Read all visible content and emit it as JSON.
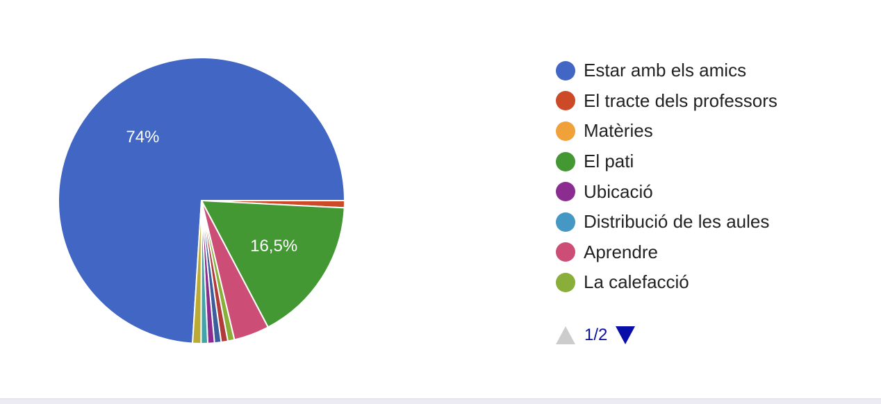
{
  "chart_data": {
    "type": "pie",
    "slices": [
      {
        "label": "Estar amb els amics",
        "value": 74,
        "display": "74%",
        "color": "#4166c4"
      },
      {
        "label": "El tracte dels professors",
        "value": 0.8,
        "display": "",
        "color": "#cc4a28"
      },
      {
        "label": "El pati",
        "value": 16.5,
        "display": "16,5%",
        "color": "#449834"
      },
      {
        "label": "Aprendre",
        "value": 4.0,
        "display": "",
        "color": "#cc4e77"
      },
      {
        "label": "La calefacció",
        "value": 0.75,
        "display": "",
        "color": "#8aae3a"
      },
      {
        "label": "",
        "value": 0.75,
        "display": "",
        "color": "#b33a3a"
      },
      {
        "label": "",
        "value": 0.75,
        "display": "",
        "color": "#3c5e9c"
      },
      {
        "label": "Ubicació",
        "value": 0.75,
        "display": "",
        "color": "#8a2c90"
      },
      {
        "label": "Distribució de les aules",
        "value": 0.75,
        "display": "",
        "color": "#41a4a8"
      },
      {
        "label": "",
        "value": 0.95,
        "display": "",
        "color": "#bbaa33"
      }
    ]
  },
  "legend": {
    "items": [
      {
        "label": "Estar amb els amics",
        "color": "#4166c4"
      },
      {
        "label": "El tracte dels professors",
        "color": "#cc4a28"
      },
      {
        "label": "Matèries",
        "color": "#f0a13a"
      },
      {
        "label": "El pati",
        "color": "#449834"
      },
      {
        "label": "Ubicació",
        "color": "#8a2c90"
      },
      {
        "label": "Distribució de les aules",
        "color": "#4598c4"
      },
      {
        "label": "Aprendre",
        "color": "#cc4e77"
      },
      {
        "label": "La calefacció",
        "color": "#8aae3a"
      }
    ]
  },
  "pager": {
    "text": "1/2",
    "prev_icon": "triangle-up-icon",
    "next_icon": "triangle-down-icon"
  }
}
